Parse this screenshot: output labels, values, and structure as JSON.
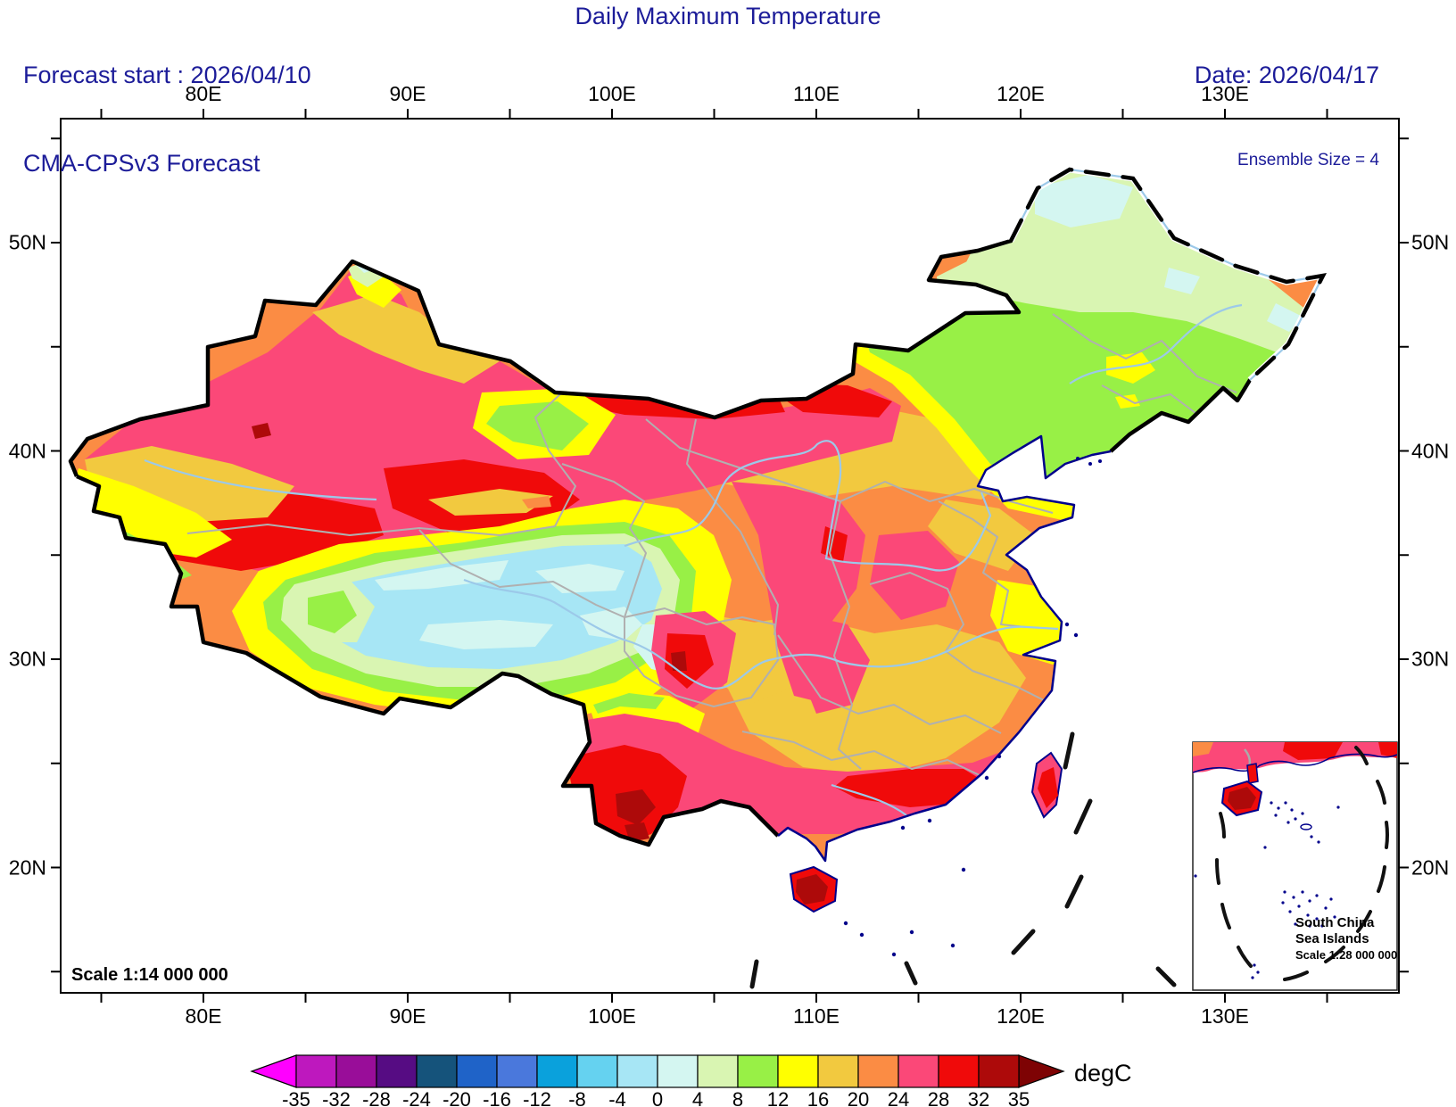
{
  "header": {
    "forecast_start": "Forecast start : 2026/04/10",
    "model_line": "CMA-CPSv3 Forecast",
    "title": "Daily Maximum Temperature",
    "date": "Date: 2026/04/17",
    "ensemble_size": "Ensemble Size = 4",
    "text_color": "#1c1c99"
  },
  "axes": {
    "lon_labels": [
      "80E",
      "90E",
      "100E",
      "110E",
      "120E",
      "130E"
    ],
    "lat_labels": [
      "50N",
      "40N",
      "30N",
      "20N"
    ]
  },
  "map_annotations": {
    "scale_label": "Scale 1:14 000 000",
    "inset": {
      "line1": "South China",
      "line2": "Sea Islands",
      "line3": "Scale 1:28 000 000"
    }
  },
  "colorbar": {
    "unit_label": "degC",
    "tick_labels": [
      "-35",
      "-32",
      "-28",
      "-24",
      "-20",
      "-16",
      "-12",
      "-8",
      "-4",
      "0",
      "4",
      "8",
      "12",
      "16",
      "20",
      "24",
      "28",
      "32",
      "35"
    ],
    "cell_colors": [
      "#be18be",
      "#990d99",
      "#560c83",
      "#15537b",
      "#1f63c8",
      "#4a78dc",
      "#0aa1dc",
      "#65d2f0",
      "#a7e6f5",
      "#d4f6f1",
      "#d9f5b2",
      "#98f046",
      "#ffff00",
      "#f2c93f",
      "#fb8c44",
      "#fb4878",
      "#f00a0a",
      "#ad0a0a"
    ],
    "under_arrow_color": "#ff00ff",
    "over_arrow_color": "#7e0304"
  },
  "chart_data": {
    "type": "heatmap",
    "title": "Daily Maximum Temperature",
    "units": "degC",
    "valid_date": "2026/04/17",
    "forecast_start": "2026/04/10",
    "model": "CMA-CPSv3",
    "ensemble_size": 4,
    "lon_range_deg_e": [
      73,
      138.5
    ],
    "lat_range_deg_n": [
      14,
      56
    ],
    "contour_levels": [
      -35,
      -32,
      -28,
      -24,
      -20,
      -16,
      -12,
      -8,
      -4,
      0,
      4,
      8,
      12,
      16,
      20,
      24,
      28,
      32,
      35
    ],
    "level_colors": [
      "#be18be",
      "#990d99",
      "#560c83",
      "#15537b",
      "#1f63c8",
      "#4a78dc",
      "#0aa1dc",
      "#65d2f0",
      "#a7e6f5",
      "#d4f6f1",
      "#d9f5b2",
      "#98f046",
      "#ffff00",
      "#f2c93f",
      "#fb8c44",
      "#fb4878",
      "#f00a0a",
      "#ad0a0a"
    ],
    "region_values_degC": {
      "xinjiang_tarim_basin": "28 to 34 (red core, crimson surround)",
      "xinjiang_north_fringe": "12 to 24 (yellow-goldenrod bands along border)",
      "pamir_sw_corner": "-4 to 12 (banded cyan/green/yellow)",
      "tibetan_plateau_core": "-4 to 4 (light blue / pale cyan)",
      "plateau_rim": "4 to 16 (pale green, green, yellow rings)",
      "inner_mongolia_central": "16 to 24 (orange/goldenrod with yellow band)",
      "north_border_105e_110e": "24 to 32 (crimson/red band)",
      "northeast_plain": "8 to 12 (green)",
      "far_northeast": "0 to 8 (pale green with pale cyan patches)",
      "north_china_plain": "20 to 28 (orange with crimson patches)",
      "shaanxi_loess": "24 to 32 (crimson band with red specks)",
      "sichuan_chongqing": "16 to 32 (goldenrod basin, red spot west)",
      "yangtze_mid_lower": "16 to 24 (goldenrod/orange)",
      "jiangsu_coast": "12 to 16 (yellow)",
      "south_china_coast": "24 to 32 (crimson band, red cores)",
      "yunnan_southwest": "28 to 35 (red with dark-red spots)",
      "hainan": "32 to 35 (dark red)",
      "taiwan": "24 to 32 (crimson with red core)"
    },
    "legend_position": "bottom",
    "grid": false
  }
}
